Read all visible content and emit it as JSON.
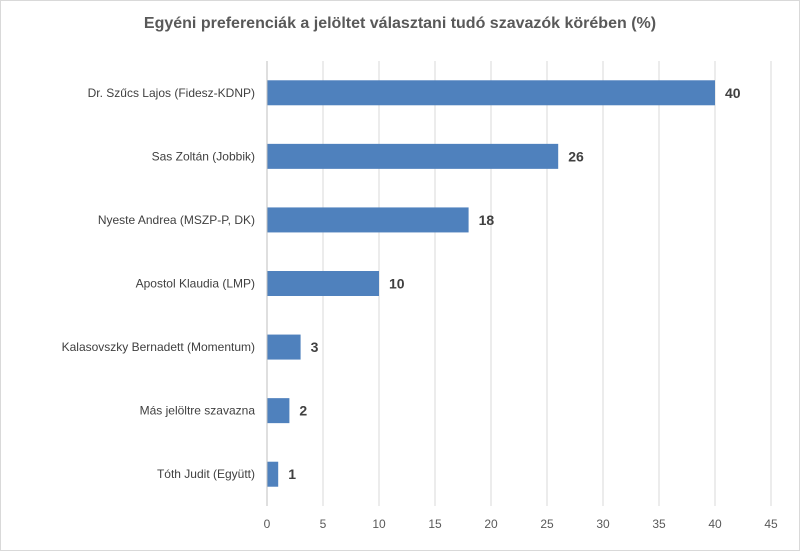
{
  "chart_data": {
    "type": "bar",
    "orientation": "horizontal",
    "title": "Egyéni preferenciák a jelöltet választani tudó szavazók körében (%)",
    "categories": [
      "Dr. Szűcs Lajos (Fidesz-KDNP)",
      "Sas Zoltán (Jobbik)",
      "Nyeste Andrea (MSZP-P, DK)",
      "Apostol Klaudia (LMP)",
      "Kalasovszky Bernadett (Momentum)",
      "Más jelöltre szavazna",
      "Tóth Judit (Együtt)"
    ],
    "values": [
      40,
      26,
      18,
      10,
      3,
      2,
      1
    ],
    "xlim": [
      0,
      45
    ],
    "xticks": [
      0,
      5,
      10,
      15,
      20,
      25,
      30,
      35,
      40,
      45
    ],
    "grid": true,
    "bar_color": "#4f81bd",
    "grid_color": "#d9d9d9"
  }
}
